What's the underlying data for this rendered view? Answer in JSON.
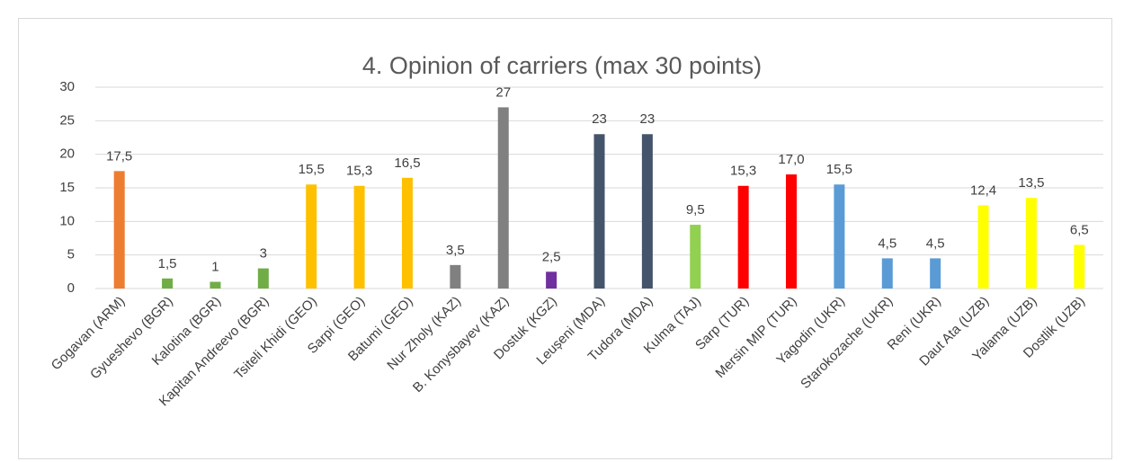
{
  "chart_data": {
    "type": "bar",
    "title": "4. Opinion of carriers (max 30 points)",
    "categories": [
      "Gogavan (ARM)",
      "Gyueshevo (BGR)",
      "Kalotina (BGR)",
      "Kapitan Andreevo (BGR)",
      "Tsiteli Khidi (GEO)",
      "Sarpi (GEO)",
      "Batumi (GEO)",
      "Nur Zholy (KAZ)",
      "B. Konysbayev (KAZ)",
      "Dostuk (KGZ)",
      "Leușeni (MDA)",
      "Tudora (MDA)",
      "Kulma (TAJ)",
      "Sarp (TUR)",
      "Mersin MIP (TUR)",
      "Yagodin (UKR)",
      "Starokozache (UKR)",
      "Reni (UKR)",
      "Daut Ata (UZB)",
      "Yalama (UZB)",
      "Dostlik (UZB)"
    ],
    "values": [
      17.5,
      1.5,
      1,
      3,
      15.5,
      15.3,
      16.5,
      3.5,
      27,
      2.5,
      23,
      23,
      9.5,
      15.3,
      17.0,
      15.5,
      4.5,
      4.5,
      12.4,
      13.5,
      6.5
    ],
    "value_labels": [
      "17,5",
      "1,5",
      "1",
      "3",
      "15,5",
      "15,3",
      "16,5",
      "3,5",
      "27",
      "2,5",
      "23",
      "23",
      "9,5",
      "15,3",
      "17,0",
      "15,5",
      "4,5",
      "4,5",
      "12,4",
      "13,5",
      "6,5"
    ],
    "colors": [
      "#ED7D31",
      "#70AD47",
      "#70AD47",
      "#70AD47",
      "#FFC000",
      "#FFC000",
      "#FFC000",
      "#808080",
      "#808080",
      "#7030A0",
      "#44546A",
      "#44546A",
      "#92D050",
      "#FF0000",
      "#FF0000",
      "#5B9BD5",
      "#5B9BD5",
      "#5B9BD5",
      "#FFFF00",
      "#FFFF00",
      "#FFFF00"
    ],
    "ylim": [
      0,
      30
    ],
    "yticks": [
      0,
      5,
      10,
      15,
      20,
      25,
      30
    ],
    "grid": true
  }
}
